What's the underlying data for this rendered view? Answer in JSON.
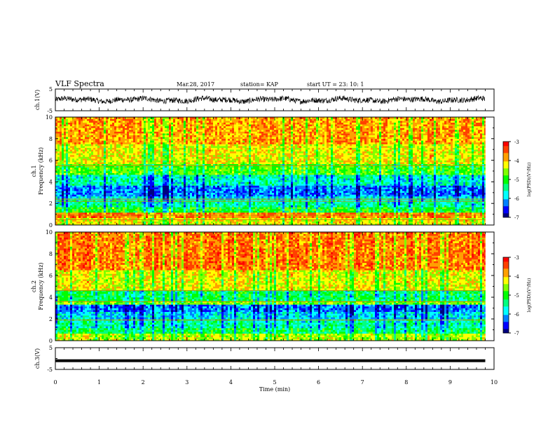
{
  "header": {
    "title": "VLF Spectra",
    "date": "Mar.28, 2017",
    "station": "station= KAP",
    "start_time": "start  UT  =   23: 10: 1"
  },
  "chart_data": [
    {
      "type": "line",
      "panel": "ch1-waveform",
      "ylabel": "ch.1(V)",
      "ylim": [
        -5,
        5
      ],
      "yticks": [
        "5",
        "-5"
      ],
      "xlim": [
        0,
        10
      ],
      "series": [
        {
          "style": "noisy waveform",
          "color": "#000000",
          "amplitude_range": [
            -2,
            2
          ]
        }
      ],
      "data_end_min": 9.8
    },
    {
      "type": "heatmap",
      "panel": "ch1-spectrogram",
      "ylabel": "ch.1\nFrequency  (kHz)",
      "ylim": [
        0,
        10
      ],
      "yticks": [
        "0",
        "2",
        "4",
        "6",
        "8",
        "10"
      ],
      "xlim": [
        0,
        10
      ],
      "data_end_min": 9.8,
      "bands_khz": [
        {
          "from": 0.0,
          "to": 0.7,
          "level": -4.2
        },
        {
          "from": 0.7,
          "to": 1.1,
          "level": -3.6
        },
        {
          "from": 1.1,
          "to": 1.7,
          "level": -5.0
        },
        {
          "from": 1.7,
          "to": 2.4,
          "level": -5.5
        },
        {
          "from": 2.4,
          "to": 2.7,
          "level": -5.8
        },
        {
          "from": 2.7,
          "to": 3.7,
          "level": -6.2
        },
        {
          "from": 3.7,
          "to": 4.6,
          "level": -5.6
        },
        {
          "from": 4.6,
          "to": 5.6,
          "level": -4.8
        },
        {
          "from": 5.6,
          "to": 7.5,
          "level": -4.2
        },
        {
          "from": 7.5,
          "to": 10.0,
          "level": -3.8
        }
      ],
      "lines_khz": [
        0.5,
        0.9,
        2.2,
        2.4,
        5.5
      ],
      "colorbar": {
        "label": "log(PSD)(V²/Hz)",
        "range": [
          -7,
          -3
        ],
        "ticks": [
          "-3",
          "-4",
          "-5",
          "-6",
          "-7"
        ]
      }
    },
    {
      "type": "heatmap",
      "panel": "ch2-spectrogram",
      "ylabel": "ch.2\nFrequency  (kHz)",
      "ylim": [
        0,
        10
      ],
      "yticks": [
        "0",
        "2",
        "4",
        "6",
        "8",
        "10"
      ],
      "xlim": [
        0,
        10
      ],
      "data_end_min": 9.8,
      "bands_khz": [
        {
          "from": 0.0,
          "to": 0.6,
          "level": -4.4
        },
        {
          "from": 0.6,
          "to": 1.2,
          "level": -5.2
        },
        {
          "from": 1.2,
          "to": 2.0,
          "level": -5.5
        },
        {
          "from": 2.0,
          "to": 2.6,
          "level": -5.8
        },
        {
          "from": 2.6,
          "to": 3.4,
          "level": -6.2
        },
        {
          "from": 3.4,
          "to": 3.7,
          "level": -4.6
        },
        {
          "from": 3.7,
          "to": 4.6,
          "level": -5.2
        },
        {
          "from": 4.6,
          "to": 6.5,
          "level": -4.2
        },
        {
          "from": 6.5,
          "to": 10.0,
          "level": -3.6
        }
      ],
      "lines_khz": [
        1.9,
        3.6,
        4.6
      ],
      "colorbar": {
        "label": "log(PSD)(V²/Hz)",
        "range": [
          -7,
          -3
        ],
        "ticks": [
          "-3",
          "-4",
          "-5",
          "-6",
          "-7"
        ]
      }
    },
    {
      "type": "line",
      "panel": "ch3-waveform",
      "ylabel": "ch.3(V)",
      "ylim": [
        -5,
        5
      ],
      "yticks": [
        "5",
        "-5"
      ],
      "xlim": [
        0,
        10
      ],
      "series": [
        {
          "style": "flat",
          "color": "#000000",
          "value": -1
        }
      ],
      "data_end_min": 9.8
    }
  ],
  "xaxis": {
    "label": "Time  (min)",
    "ticks": [
      "0",
      "1",
      "2",
      "3",
      "4",
      "5",
      "6",
      "7",
      "8",
      "9",
      "10"
    ]
  },
  "colors": {
    "colormap": [
      "#000000",
      "#0000ff",
      "#00ffff",
      "#00ff00",
      "#ffff00",
      "#ff8000",
      "#ff0000",
      "#ffffff"
    ]
  }
}
